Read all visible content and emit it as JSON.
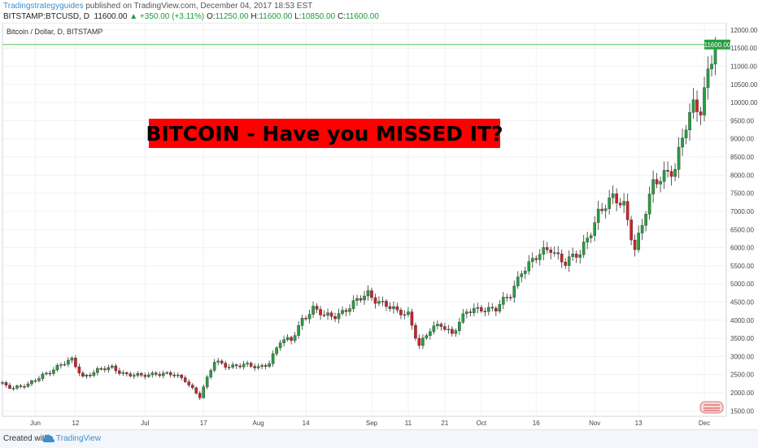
{
  "header": {
    "author": "Tradingstrategyguides",
    "published": "published on TradingView.com, December 04, 2017 18:53 EST",
    "symbol": "BITSTAMP:BTCUSD, D",
    "last": "11600.00",
    "change": "▲ +350.00 (+3.11%)",
    "o_label": "O:",
    "o_value": "11250.00",
    "h_label": "H:",
    "h_value": "11600.00",
    "l_label": "L:",
    "l_value": "10850.00",
    "c_label": "C:",
    "c_value": "11600.00"
  },
  "legend_title": "Bitcoin / Dollar, D, BITSTAMP",
  "banner": "BITCOIN - Have you MISSED IT?",
  "last_price_label": "11600.00",
  "footer": {
    "created_with": "Created with",
    "brand": "TradingView"
  },
  "colors": {
    "up": "#26a03f",
    "down": "#d21f27",
    "price_line": "#58c958",
    "banner_bg": "#ff0000",
    "banner_text": "#000000",
    "grid": "#eef1f5"
  },
  "chart_data": {
    "type": "candlestick",
    "title": "Bitcoin / Dollar, D, BITSTAMP",
    "ylim": [
      1350,
      12200
    ],
    "y_ticks": [
      1500,
      2000,
      2500,
      3000,
      3500,
      4000,
      4500,
      5000,
      5500,
      6000,
      6500,
      7000,
      7500,
      8000,
      8500,
      9000,
      9500,
      10000,
      10500,
      11000,
      11500,
      12000
    ],
    "y_tick_labels": [
      "1500.00",
      "2000.00",
      "2500.00",
      "3000.00",
      "3500.00",
      "4000.00",
      "4500.00",
      "5000.00",
      "5500.00",
      "6000.00",
      "6500.00",
      "7000.00",
      "7500.00",
      "8000.00",
      "8500.00",
      "9000.00",
      "9500.00",
      "10000.00",
      "10500.00",
      "11000.00",
      "11500.00",
      "12000.00"
    ],
    "x_ticks": [
      {
        "label": "Jun",
        "date": "2017-06-01"
      },
      {
        "label": "12",
        "date": "2017-06-12"
      },
      {
        "label": "Jul",
        "date": "2017-07-01"
      },
      {
        "label": "17",
        "date": "2017-07-17"
      },
      {
        "label": "Aug",
        "date": "2017-08-01"
      },
      {
        "label": "14",
        "date": "2017-08-14"
      },
      {
        "label": "Sep",
        "date": "2017-09-01"
      },
      {
        "label": "11",
        "date": "2017-09-11"
      },
      {
        "label": "21",
        "date": "2017-09-21"
      },
      {
        "label": "Oct",
        "date": "2017-10-01"
      },
      {
        "label": "16",
        "date": "2017-10-16"
      },
      {
        "label": "Nov",
        "date": "2017-11-01"
      },
      {
        "label": "13",
        "date": "2017-11-13"
      },
      {
        "label": "Dec",
        "date": "2017-12-01"
      }
    ],
    "grid": true,
    "last_price": 11600,
    "close_points": [
      [
        "2017-05-23",
        2250
      ],
      [
        "2017-05-26",
        2150
      ],
      [
        "2017-05-30",
        2200
      ],
      [
        "2017-06-03",
        2500
      ],
      [
        "2017-06-07",
        2700
      ],
      [
        "2017-06-11",
        2900
      ],
      [
        "2017-06-14",
        2450
      ],
      [
        "2017-06-18",
        2600
      ],
      [
        "2017-06-22",
        2700
      ],
      [
        "2017-06-26",
        2500
      ],
      [
        "2017-06-30",
        2450
      ],
      [
        "2017-07-04",
        2550
      ],
      [
        "2017-07-08",
        2500
      ],
      [
        "2017-07-12",
        2350
      ],
      [
        "2017-07-16",
        1900
      ],
      [
        "2017-07-20",
        2850
      ],
      [
        "2017-07-24",
        2750
      ],
      [
        "2017-07-28",
        2750
      ],
      [
        "2017-08-01",
        2700
      ],
      [
        "2017-08-04",
        2850
      ],
      [
        "2017-08-07",
        3400
      ],
      [
        "2017-08-10",
        3450
      ],
      [
        "2017-08-13",
        4050
      ],
      [
        "2017-08-16",
        4300
      ],
      [
        "2017-08-19",
        4100
      ],
      [
        "2017-08-22",
        4150
      ],
      [
        "2017-08-26",
        4350
      ],
      [
        "2017-08-31",
        4750
      ],
      [
        "2017-09-02",
        4600
      ],
      [
        "2017-09-05",
        4400
      ],
      [
        "2017-09-08",
        4200
      ],
      [
        "2017-09-11",
        4200
      ],
      [
        "2017-09-14",
        3300
      ],
      [
        "2017-09-17",
        3700
      ],
      [
        "2017-09-20",
        3900
      ],
      [
        "2017-09-23",
        3650
      ],
      [
        "2017-09-27",
        4200
      ],
      [
        "2017-10-01",
        4350
      ],
      [
        "2017-10-05",
        4300
      ],
      [
        "2017-10-09",
        4700
      ],
      [
        "2017-10-12",
        5400
      ],
      [
        "2017-10-16",
        5700
      ],
      [
        "2017-10-20",
        6000
      ],
      [
        "2017-10-24",
        5600
      ],
      [
        "2017-10-28",
        5800
      ],
      [
        "2017-11-02",
        7000
      ],
      [
        "2017-11-06",
        7300
      ],
      [
        "2017-11-09",
        7200
      ],
      [
        "2017-11-12",
        6000
      ],
      [
        "2017-11-14",
        6600
      ],
      [
        "2017-11-17",
        7700
      ],
      [
        "2017-11-20",
        8100
      ],
      [
        "2017-11-23",
        8200
      ],
      [
        "2017-11-26",
        9300
      ],
      [
        "2017-11-28",
        9900
      ],
      [
        "2017-11-30",
        9900
      ],
      [
        "2017-12-02",
        10900
      ],
      [
        "2017-12-04",
        11600
      ]
    ]
  }
}
